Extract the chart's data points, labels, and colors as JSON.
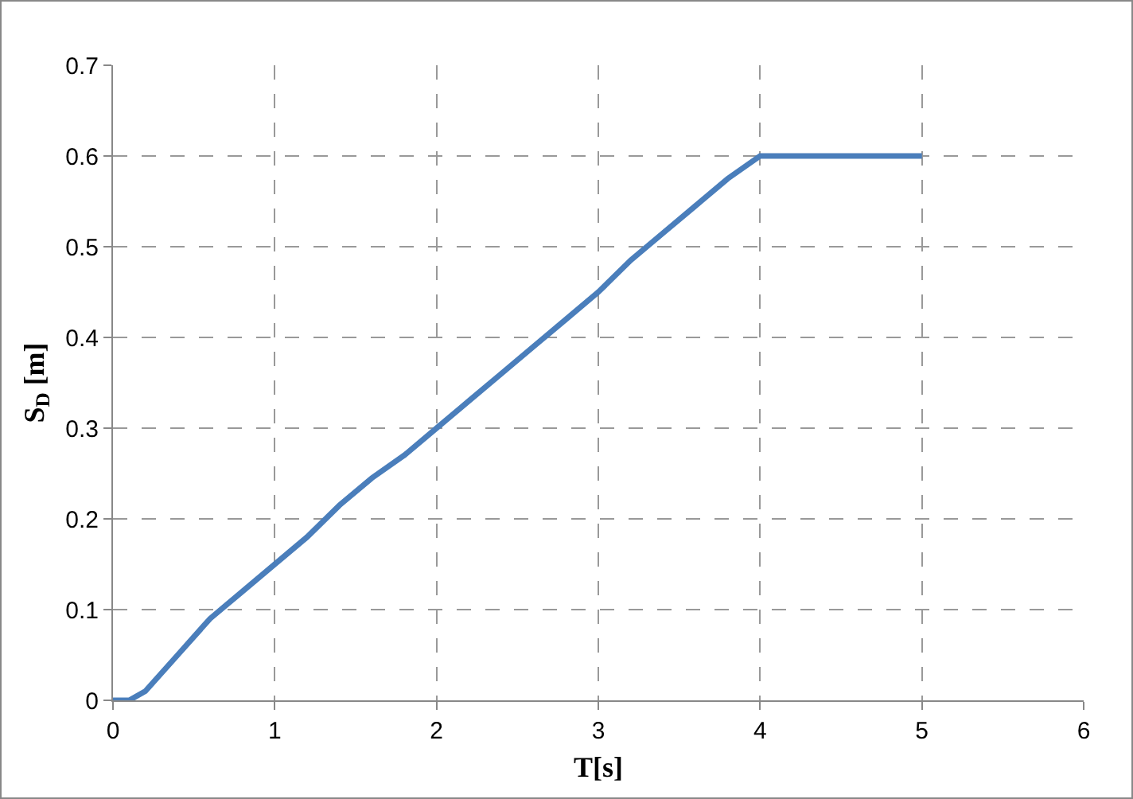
{
  "chart_data": {
    "type": "line",
    "xlabel": "T[s]",
    "ylabel": "S$_{D}$ [m]",
    "x": [
      0,
      0.1,
      0.2,
      0.4,
      0.6,
      0.8,
      1,
      1.2,
      1.4,
      1.6,
      1.8,
      2,
      2.2,
      2.4,
      2.6,
      2.8,
      3,
      3.2,
      3.4,
      3.6,
      3.8,
      4,
      4.5,
      5
    ],
    "series": [
      {
        "color": "#4a7ebb",
        "values": [
          0,
          0,
          0.01,
          0.05,
          0.09,
          0.12,
          0.15,
          0.18,
          0.215,
          0.245,
          0.27,
          0.3,
          0.33,
          0.36,
          0.39,
          0.42,
          0.45,
          0.485,
          0.515,
          0.545,
          0.575,
          0.6,
          0.6,
          0.6
        ]
      }
    ],
    "xlim": [
      0,
      6
    ],
    "xticks": [
      0,
      1,
      2,
      3,
      4,
      5,
      6
    ],
    "ylim": [
      0,
      0.7
    ],
    "yticks": [
      0,
      0.1,
      0.2,
      0.3,
      0.4,
      0.5,
      0.6,
      0.7
    ],
    "grid": true,
    "legend": false,
    "marker": "none",
    "line_style": "solid"
  }
}
